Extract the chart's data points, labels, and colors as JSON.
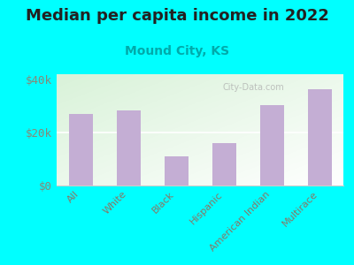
{
  "title": "Median per capita income in 2022",
  "subtitle": "Mound City, KS",
  "categories": [
    "All",
    "White",
    "Black",
    "Hispanic",
    "American Indian",
    "Multirace"
  ],
  "values": [
    27000,
    28500,
    11000,
    16000,
    30500,
    36500
  ],
  "bar_color": "#c4aed4",
  "background_outer": "#00FFFF",
  "background_inner_top_left": "#d6eec8",
  "background_inner_right": "#f5f5f0",
  "title_fontsize": 13,
  "subtitle_fontsize": 10,
  "subtitle_color": "#00AAAA",
  "tick_color": "#888877",
  "label_color": "#887766",
  "ylim": [
    0,
    42000
  ],
  "yticks": [
    0,
    20000,
    40000
  ],
  "ytick_labels": [
    "$0",
    "$20k",
    "$40k"
  ],
  "watermark": "City-Data.com"
}
